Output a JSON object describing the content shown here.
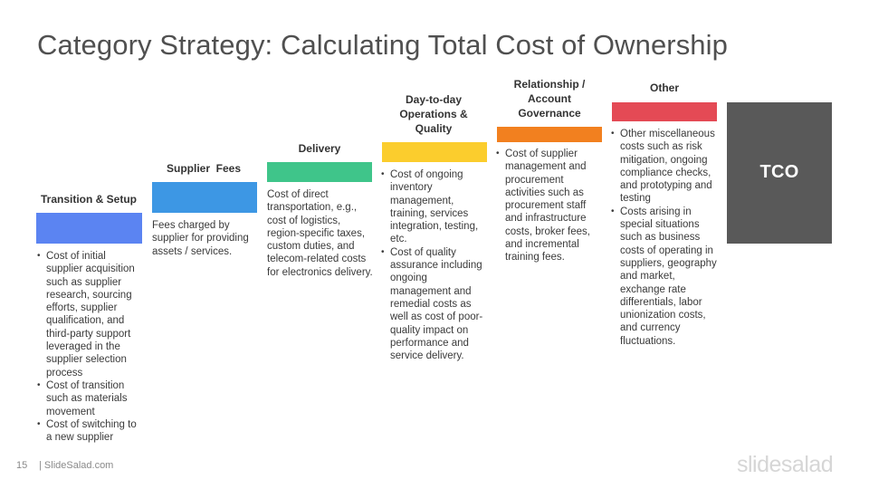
{
  "title": "Category Strategy: Calculating Total Cost of Ownership",
  "steps": [
    {
      "label": "Transition & Setup",
      "color": "#5b84f2",
      "bullets": [
        "Cost of initial supplier acquisition such as supplier research, sourcing efforts, supplier qualification, and third-party support leveraged in the supplier selection process",
        "Cost of transition such as materials movement",
        "Cost of switching to a new supplier"
      ]
    },
    {
      "label": "Supplier  Fees",
      "color": "#3d97e4",
      "text": "Fees charged by supplier for providing assets / services."
    },
    {
      "label": "Delivery",
      "color": "#3fc58a",
      "text": "Cost of direct transportation, e.g., cost of logistics, region-specific taxes, custom duties, and telecom-related costs for electronics delivery."
    },
    {
      "label": "Day-to-day Operations & Quality",
      "color": "#fbcd2d",
      "bullets": [
        "Cost of ongoing inventory management, training, services integration, testing, etc.",
        "Cost of quality assurance including ongoing management and remedial costs as well as cost of poor-quality impact on performance and service delivery."
      ]
    },
    {
      "label": "Relationship / Account Governance",
      "color": "#f2801f",
      "bullets": [
        "Cost of supplier management and procurement activities such as procurement staff and infrastructure costs, broker fees, and incremental training fees."
      ]
    },
    {
      "label": "Other",
      "color": "#e44a55",
      "bullets": [
        "Other miscellaneous costs such as risk mitigation, ongoing compliance checks, and prototyping and testing",
        "Costs arising in special situations such as business costs of operating in suppliers, geography and market, exchange rate differentials, labor unionization costs, and currency fluctuations."
      ]
    }
  ],
  "tco": {
    "label": "TCO",
    "color": "#595959"
  },
  "footer": {
    "page_number": "15",
    "site": "| SlideSalad.com",
    "brand": "slidesalad"
  }
}
